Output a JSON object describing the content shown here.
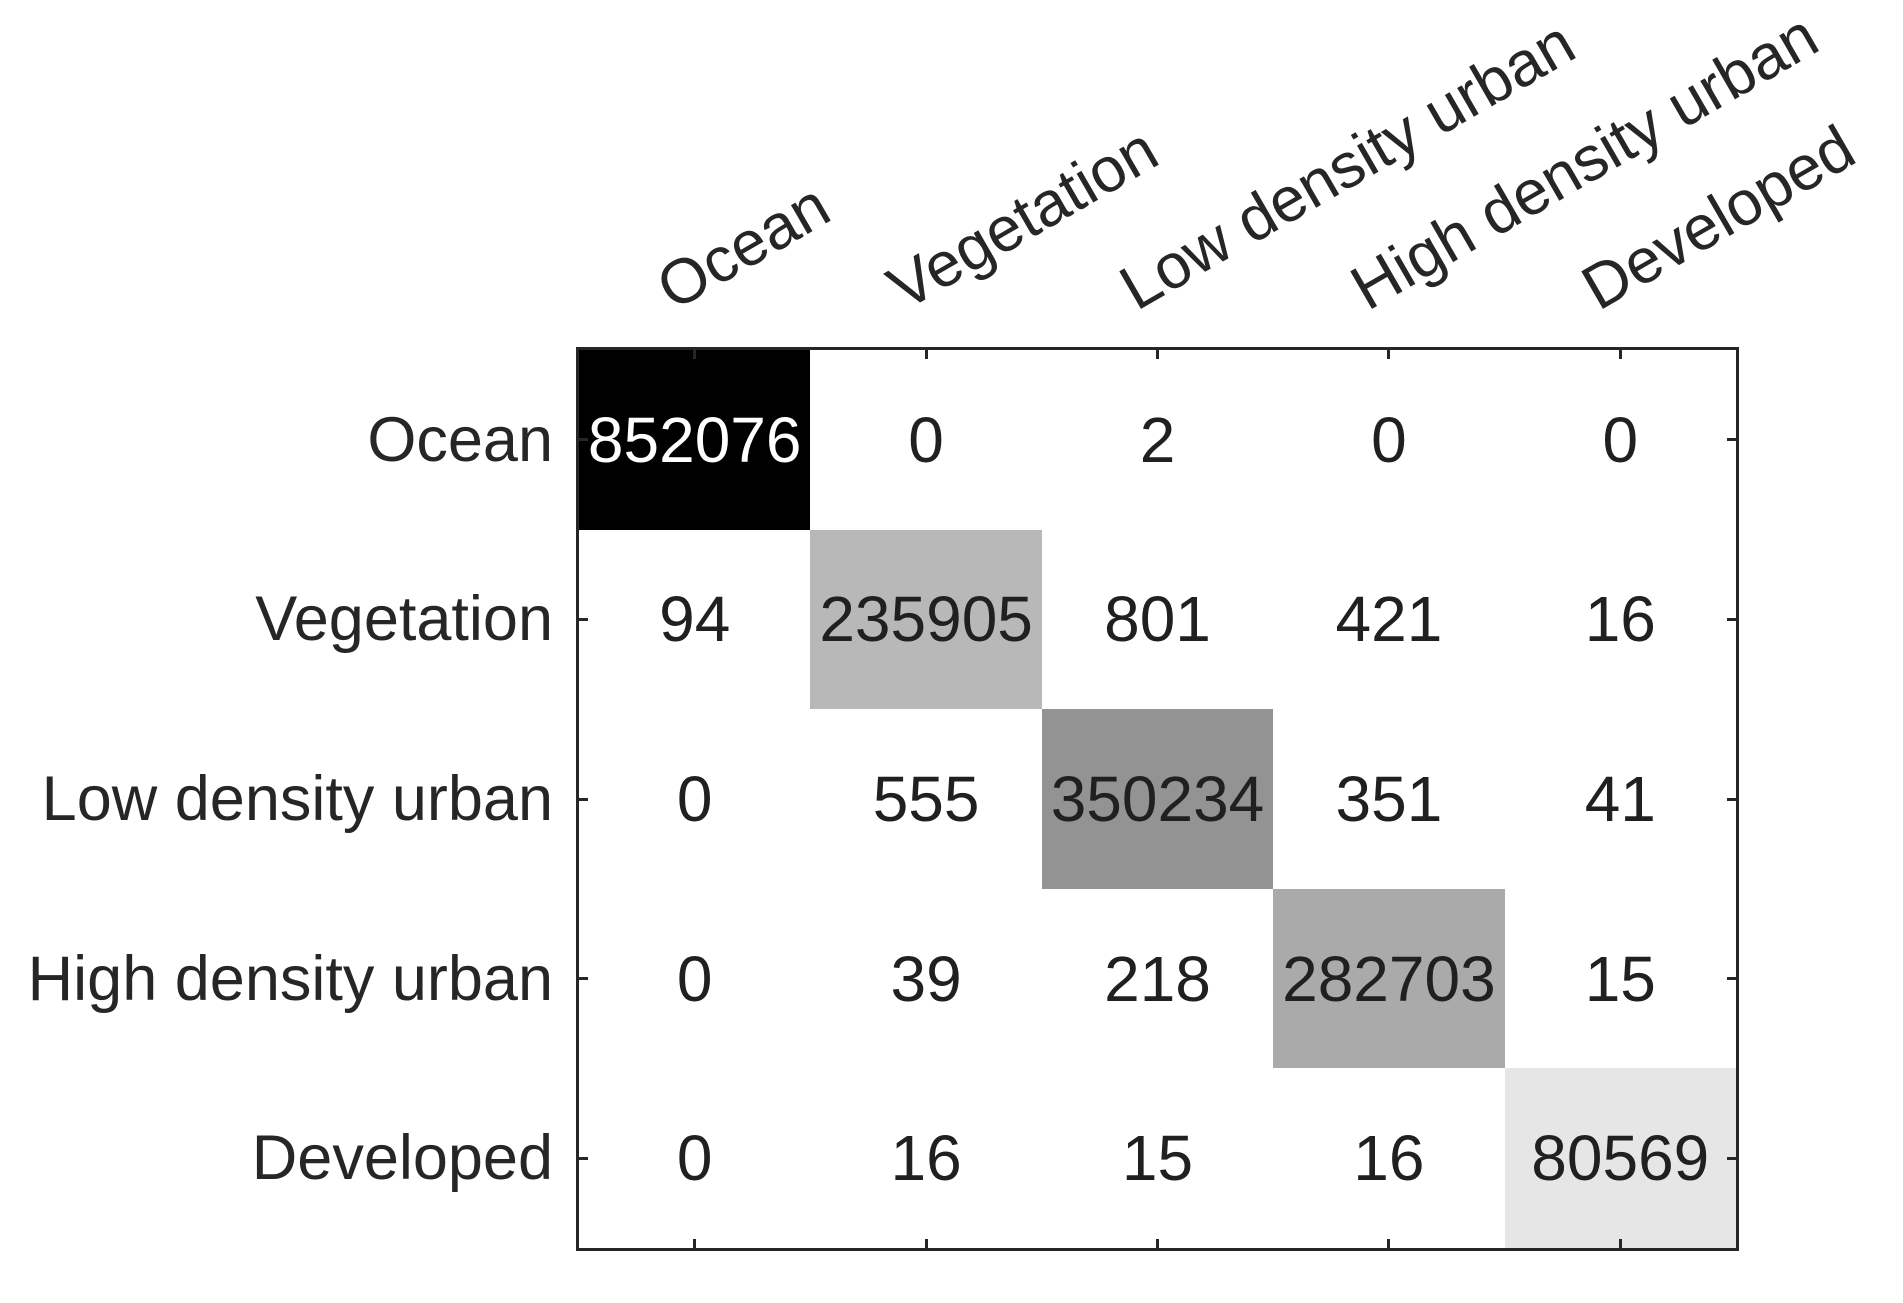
{
  "chart_data": {
    "type": "heatmap",
    "variant": "confusion-matrix",
    "title": "",
    "classes": [
      "Ocean",
      "Vegetation",
      "Low density urban",
      "High density urban",
      "Developed"
    ],
    "row_labels": [
      "Ocean",
      "Vegetation",
      "Low density urban",
      "High density urban",
      "Developed"
    ],
    "column_labels": [
      "Ocean",
      "Vegetation",
      "Low density urban",
      "High density urban",
      "Developed"
    ],
    "matrix": [
      [
        852076,
        0,
        2,
        0,
        0
      ],
      [
        94,
        235905,
        801,
        421,
        16
      ],
      [
        0,
        555,
        350234,
        351,
        41
      ],
      [
        0,
        39,
        218,
        282703,
        15
      ],
      [
        0,
        16,
        15,
        16,
        80569
      ]
    ],
    "max_value": 852076,
    "colormap": "grayscale, darker = larger value, diagonal cells shaded only",
    "diagonal_colors": [
      "#000000",
      "#b8b8b8",
      "#939393",
      "#aaaaaa",
      "#e6e6e6"
    ],
    "diagonal_text_colors": [
      "#ffffff",
      "#202020",
      "#202020",
      "#202020",
      "#202020"
    ],
    "off_diagonal_color": "#ffffff",
    "value_text_color": "#202020",
    "axis_color": "#262626",
    "background_color": "#ffffff",
    "legend": "none",
    "gridlines": "none",
    "tick_direction": "in",
    "column_label_rotation_deg": 30
  }
}
